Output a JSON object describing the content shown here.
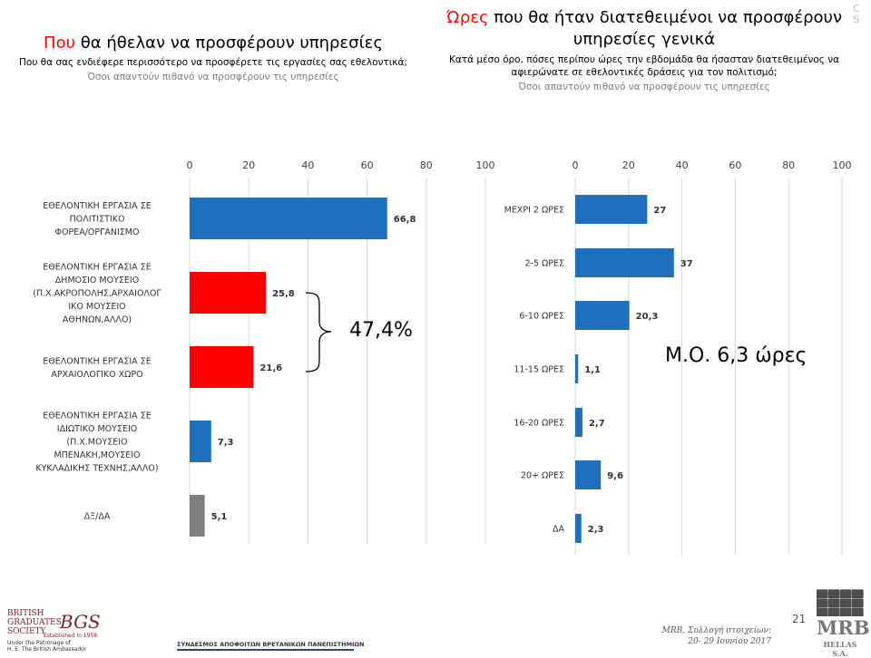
{
  "left_title": {
    "prefix": "Που",
    "rest": " θα ήθελαν να προσφέρουν υπηρεσίες",
    "question": "Που θα σας ενδιέφερε περισσότερο να προσφέρετε τις εργασίες σας εθελοντικά;",
    "base": "Όσοι απαντούν πιθανό να προσφέρουν τις υπηρεσίες"
  },
  "right_title": {
    "prefix": "Ώρες",
    "rest": " που θα ήταν διατεθειμένοι να προσφέρουν υπηρεσίες γενικά",
    "question": "Κατά μέσο όρο, πόσες περίπου ώρες την εβδομάδα θα ήσασταν διατεθειμένος να αφιερώνατε σε εθελοντικές δράσεις για τον πολιτισμό;",
    "base": "Όσοι απαντούν πιθανό να προσφέρουν τις υπηρεσίες"
  },
  "callouts": {
    "sum": "47,4%",
    "mean": "Μ.Ο. 6,3 ώρες"
  },
  "colors": {
    "blue": "#1f6fbf",
    "red": "#ff0000",
    "gray": "#7f7f7f",
    "title_red": "#ff0000"
  },
  "chart_data": [
    {
      "type": "bar",
      "orientation": "horizontal",
      "categories": [
        [
          "ΕΘΕΛΟΝΤΙΚΗ ΕΡΓΑΣΙΑ ΣΕ",
          "ΠΟΛΙΤΙΣΤΙΚΟ",
          "ΦΟΡΕΑ/ΟΡΓΑΝΙΣΜΟ"
        ],
        [
          "ΕΘΕΛΟΝΤΙΚΗ ΕΡΓΑΣΙΑ ΣΕ",
          "ΔΗΜΟΣΙΟ ΜΟΥΣΕΙΟ",
          "(Π.Χ.ΑΚΡΟΠΟΛΗΣ,ΑΡΧΑΙΟΛΟΓ",
          "ΙΚΟ ΜΟΥΣΕΙΟ",
          "ΑΘΗΝΩΝ,ΑΛΛΟ)"
        ],
        [
          "ΕΘΕΛΟΝΤΙΚΗ ΕΡΓΑΣΙΑ ΣΕ",
          "ΑΡΧΑΙΟΛΟΓΙΚΟ ΧΩΡΟ"
        ],
        [
          "ΕΘΕΛΟΝΤΙΚΗ ΕΡΓΑΣΙΑ ΣΕ",
          "ΙΔΙΩΤΙΚΟ ΜΟΥΣΕΙΟ",
          "(Π.Χ.ΜΟΥΣΕΙΟ",
          "ΜΠΕΝΑΚΗ,ΜΟΥΣΕΙΟ",
          "ΚΥΚΛΑΔΙΚΗΣ ΤΕΧΝΗΣ,ΑΛΛΟ)"
        ],
        [
          "ΔΞ/ΔΑ"
        ]
      ],
      "values": [
        66.8,
        25.8,
        21.6,
        7.3,
        5.1
      ],
      "value_labels": [
        "66,8",
        "25,8",
        "21,6",
        "7,3",
        "5,1"
      ],
      "bar_colors": [
        "#1f6fbf",
        "#ff0000",
        "#ff0000",
        "#1f6fbf",
        "#7f7f7f"
      ],
      "xlim": [
        0,
        100
      ],
      "ticks": [
        0,
        20,
        40,
        60,
        80,
        100
      ],
      "grid": true,
      "tick_position": "top"
    },
    {
      "type": "bar",
      "orientation": "horizontal",
      "categories": [
        "ΜΕΧΡΙ 2 ΩΡΕΣ",
        "2-5 ΩΡΕΣ",
        "6-10 ΩΡΕΣ",
        "11-15 ΩΡΕΣ",
        "16-20 ΩΡΕΣ",
        "20+ ΩΡΕΣ",
        "ΔΑ"
      ],
      "values": [
        27,
        37,
        20.3,
        1.1,
        2.7,
        9.6,
        2.3
      ],
      "value_labels": [
        "27",
        "37",
        "20,3",
        "1,1",
        "2,7",
        "9,6",
        "2,3"
      ],
      "bar_colors": [
        "#1f6fbf",
        "#1f6fbf",
        "#1f6fbf",
        "#1f6fbf",
        "#1f6fbf",
        "#1f6fbf",
        "#1f6fbf"
      ],
      "xlim": [
        0,
        100
      ],
      "ticks": [
        0,
        20,
        40,
        60,
        80,
        100
      ],
      "grid": true,
      "tick_position": "top"
    }
  ],
  "footer": {
    "bgs_name": [
      "BRITISH",
      "GRADUATES",
      "SOCIETY"
    ],
    "bgs_mark": "BGS",
    "established": "Established in 1958",
    "patronage": [
      "Under the Patronage of",
      "H. E. The British Ambassador"
    ],
    "association": "ΣΥΝΔΕΣΜΟΣ ΑΠΟΦΟΙΤΩΝ ΒΡΕΤΑΝΙΚΩΝ ΠΑΝΕΠΙΣΤΗΜΙΩΝ",
    "source_line1": "MRB, Συλλογή στοιχείων:",
    "source_line2": "20- 29 Ιουνίου 2017",
    "page_number": "21",
    "mrb_word": "MRB",
    "mrb_sub": "HELLAS S.A."
  },
  "corner": [
    "C",
    "S"
  ]
}
